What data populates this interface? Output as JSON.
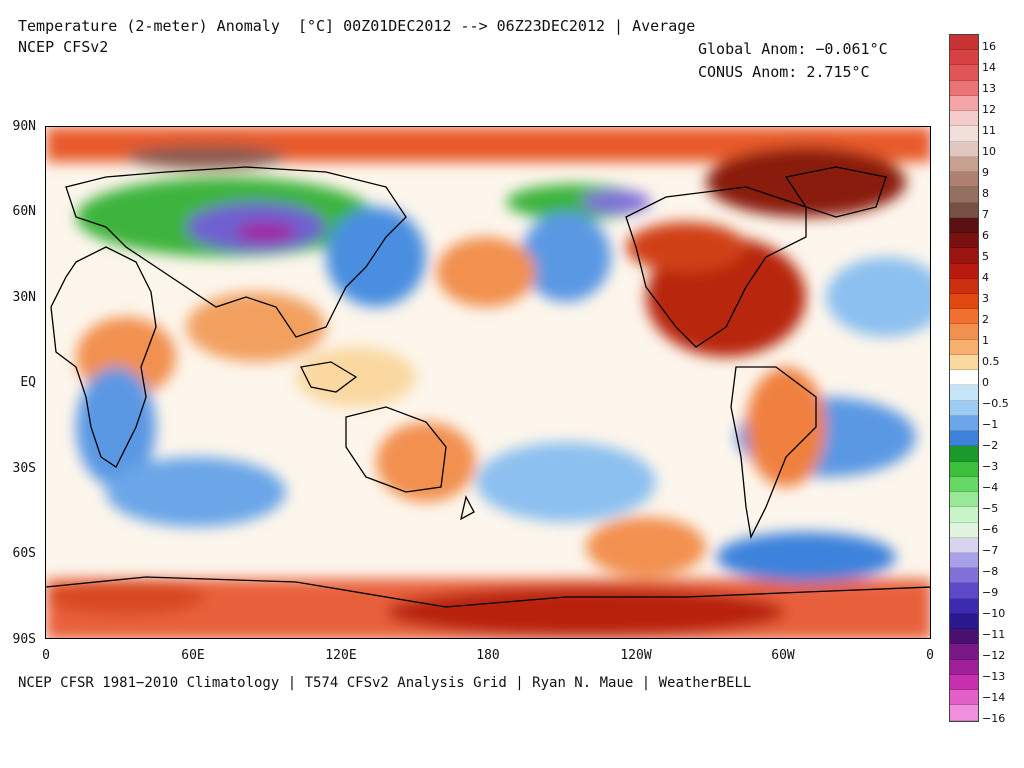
{
  "header": {
    "title": "Temperature (2-meter) Anomaly  [°C] 00Z01DEC2012 --> 06Z23DEC2012 | Average",
    "model": "NCEP CFSv2",
    "global_anom": "Global Anom: −0.061°C",
    "conus_anom": "CONUS Anom: 2.715°C"
  },
  "footer": "NCEP CFSR 1981−2010 Climatology | T574 CFSv2 Analysis Grid | Ryan N. Maue | WeatherBELL",
  "axes": {
    "y_labels": [
      "90N",
      "60N",
      "30N",
      "EQ",
      "30S",
      "60S",
      "90S"
    ],
    "x_labels": [
      "0",
      "60E",
      "120E",
      "180",
      "120W",
      "60W",
      "0"
    ]
  },
  "colorbar": {
    "labels": [
      "16",
      "14",
      "13",
      "12",
      "11",
      "10",
      "9",
      "8",
      "7",
      "6",
      "5",
      "4",
      "3",
      "2",
      "1",
      "0.5",
      "0",
      "−0.5",
      "−1",
      "−2",
      "−3",
      "−4",
      "−5",
      "−6",
      "−7",
      "−8",
      "−9",
      "−10",
      "−11",
      "−12",
      "−13",
      "−14",
      "−16"
    ],
    "colors": [
      "#c83232",
      "#d74141",
      "#e05555",
      "#ea7373",
      "#f3a5a5",
      "#f5cccc",
      "#f0e0dc",
      "#e0c8c0",
      "#c8a090",
      "#b08070",
      "#947060",
      "#785044",
      "#5a1010",
      "#7a1010",
      "#9a1410",
      "#b81a10",
      "#cc3010",
      "#e04810",
      "#f07030",
      "#f29050",
      "#f6b070",
      "#fad8a0",
      "#ffffff",
      "#c4e4f8",
      "#9ccbf3",
      "#6aa6e8",
      "#3e82dc",
      "#1a9a2a",
      "#3cc03c",
      "#66d866",
      "#98e898",
      "#c8f4c8",
      "#e0f4e0",
      "#d8d4f0",
      "#a8a0e8",
      "#8070d8",
      "#5c48c8",
      "#3c2ab0",
      "#2a1890",
      "#4a1070",
      "#7a1888",
      "#a0209a",
      "#c830b0",
      "#e060c8",
      "#f090dc"
    ],
    "palette_names": [
      "warm-red",
      "orange",
      "white",
      "light-blue",
      "blue",
      "green",
      "purple",
      "magenta"
    ]
  },
  "map_regions": {
    "north_america_anomaly": "warm",
    "siberia_anomaly": "cold",
    "alaska_anomaly": "cold"
  }
}
